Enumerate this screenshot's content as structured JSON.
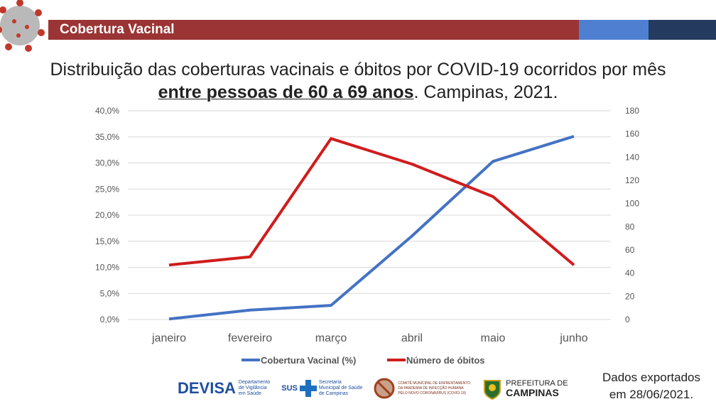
{
  "header": {
    "title": "Cobertura Vacinal"
  },
  "title": {
    "line1": "Distribuição das coberturas vacinais e óbitos por COVID-19 ocorridos por mês",
    "line2_bold": "entre pessoas de 60 a 69 anos",
    "line2_rest": ". Campinas, 2021."
  },
  "footer": {
    "export_line1": "Dados exportados",
    "export_line2": "em 28/06/2021.",
    "logos": {
      "devisa": "DEVISA",
      "devisa_sub": [
        "Departamento",
        "de Vigilância",
        "em Saúde"
      ],
      "sus": "SUS",
      "sus_sub": [
        "Secretaria",
        "Municipal de Saúde",
        "de Campinas"
      ],
      "comite_sub": [
        "COMITÊ MUNICIPAL DE ENFRENTAMENTO",
        "DA PANDEMIA DE INFECÇÃO HUMANA",
        "PELO NOVO CORONAVÍRUS (COVID-19)"
      ],
      "prefeitura": [
        "PREFEITURA DE",
        "CAMPINAS"
      ]
    }
  },
  "colors": {
    "header_red": "#9b3434",
    "header_blue": "#4f7fd0",
    "header_navy": "#243a5e",
    "series_blue": "#4472c4",
    "series_red": "#d01c1c"
  },
  "chart_data": {
    "type": "line",
    "categories": [
      "janeiro",
      "fevereiro",
      "março",
      "abril",
      "maio",
      "junho"
    ],
    "y_left": {
      "ticks": [
        "0,0%",
        "5,0%",
        "10,0%",
        "15,0%",
        "20,0%",
        "25,0%",
        "30,0%",
        "35,0%",
        "40,0%"
      ],
      "range": [
        0,
        40
      ]
    },
    "y_right": {
      "ticks": [
        "0",
        "20",
        "40",
        "60",
        "80",
        "100",
        "120",
        "140",
        "160",
        "180"
      ],
      "range": [
        0,
        180
      ]
    },
    "series": [
      {
        "name": "Cobertura Vacinal (%)",
        "axis": "left",
        "color": "#4472c4",
        "values": [
          0.1,
          1.8,
          2.7,
          16.0,
          30.3,
          35.1
        ]
      },
      {
        "name": "Número de óbitos",
        "axis": "right",
        "color": "#d01c1c",
        "values": [
          47,
          54,
          156,
          134,
          106,
          47
        ]
      }
    ],
    "grid": true,
    "legend": "bottom"
  }
}
